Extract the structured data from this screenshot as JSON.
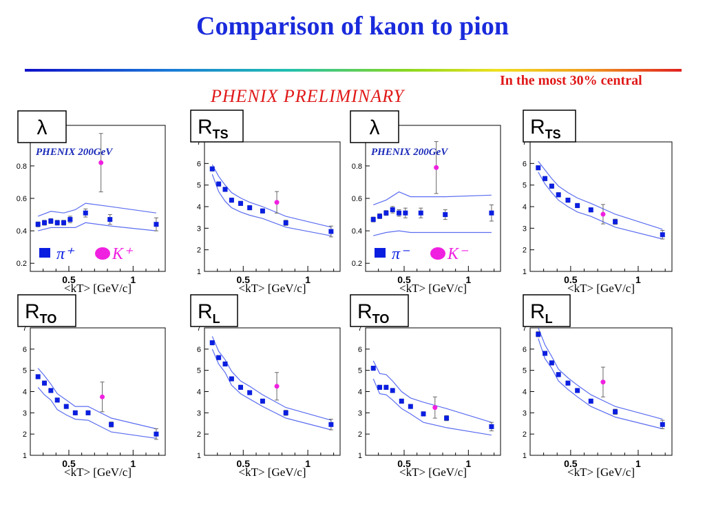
{
  "header": {
    "title": "Comparison of kaon to pion",
    "note": "In the most 30% central",
    "preliminary": "PHENIX PRELIMINARY"
  },
  "colors": {
    "title": "#1a2bdc",
    "note": "#e01818",
    "pion_marker": "#0a1ee0",
    "kaon_marker": "#f020e0",
    "band": "#5a6cf0"
  },
  "chart_data": [
    {
      "type": "scatter",
      "panel": "top-1",
      "badge": "λ",
      "experiment_label": "PHENIX 200GeV",
      "xlabel": "<kT> [GeV/c]",
      "ylabel": "",
      "xlim": [
        0.2,
        1.25
      ],
      "ylim": [
        0.15,
        1.05
      ],
      "xticks": [
        0.5,
        1
      ],
      "xtick_labels": [
        "0.5",
        "1"
      ],
      "yticks": [
        0.2,
        0.4,
        0.6,
        0.8
      ],
      "ytick_labels": [
        "0.2",
        "0.4",
        "0.6",
        "0.8"
      ],
      "legend": {
        "pion": "π⁺",
        "kaon": "K⁺"
      },
      "series": [
        {
          "name": "π⁺",
          "marker": "square",
          "x": [
            0.26,
            0.31,
            0.36,
            0.41,
            0.46,
            0.51,
            0.63,
            0.82,
            1.18
          ],
          "y": [
            0.44,
            0.45,
            0.46,
            0.45,
            0.45,
            0.47,
            0.51,
            0.47,
            0.44
          ],
          "err": [
            0.015,
            0.015,
            0.015,
            0.015,
            0.015,
            0.02,
            0.025,
            0.03,
            0.04
          ]
        },
        {
          "name": "K⁺",
          "marker": "circle",
          "x": [
            0.75
          ],
          "y": [
            0.82
          ],
          "err": [
            0.18
          ]
        }
      ],
      "band_upper": {
        "x": [
          0.26,
          0.36,
          0.46,
          0.55,
          0.63,
          0.82,
          1.18
        ],
        "y": [
          0.49,
          0.52,
          0.51,
          0.53,
          0.57,
          0.55,
          0.51
        ]
      },
      "band_lower": {
        "x": [
          0.26,
          0.36,
          0.46,
          0.55,
          0.63,
          0.82,
          1.18
        ],
        "y": [
          0.4,
          0.42,
          0.42,
          0.42,
          0.45,
          0.43,
          0.4
        ]
      }
    },
    {
      "type": "scatter",
      "panel": "top-2",
      "badge": "R",
      "badge_sub": "TS",
      "xlabel": "<kT> [GeV/c]",
      "ylabel": "",
      "xlim": [
        0.2,
        1.25
      ],
      "ylim": [
        1,
        7
      ],
      "xticks": [
        0.5,
        1
      ],
      "xtick_labels": [
        "0.5",
        "1"
      ],
      "yticks": [
        1,
        2,
        3,
        4,
        5,
        6,
        7
      ],
      "ytick_labels": [
        "1",
        "2",
        "3",
        "4",
        "5",
        "6",
        "7"
      ],
      "series": [
        {
          "name": "π⁺",
          "marker": "square",
          "x": [
            0.26,
            0.31,
            0.36,
            0.41,
            0.48,
            0.55,
            0.65,
            0.83,
            1.18
          ],
          "y": [
            5.75,
            5.05,
            4.8,
            4.3,
            4.15,
            3.95,
            3.8,
            3.25,
            2.85
          ],
          "err": [
            0.1,
            0.1,
            0.1,
            0.1,
            0.1,
            0.1,
            0.1,
            0.12,
            0.25
          ]
        },
        {
          "name": "K⁺",
          "marker": "circle",
          "x": [
            0.76
          ],
          "y": [
            4.2
          ],
          "err": [
            0.5
          ]
        }
      ],
      "band_upper": {
        "x": [
          0.26,
          0.31,
          0.36,
          0.41,
          0.48,
          0.55,
          0.65,
          0.83,
          1.18
        ],
        "y": [
          5.95,
          5.4,
          5.0,
          4.65,
          4.4,
          4.2,
          4.0,
          3.55,
          3.05
        ]
      },
      "band_lower": {
        "x": [
          0.26,
          0.31,
          0.36,
          0.41,
          0.48,
          0.55,
          0.65,
          0.83,
          1.18
        ],
        "y": [
          5.5,
          4.7,
          4.25,
          3.95,
          3.75,
          3.6,
          3.45,
          3.05,
          2.65
        ]
      }
    },
    {
      "type": "scatter",
      "panel": "top-3",
      "badge": "λ",
      "experiment_label": "PHENIX 200GeV",
      "xlabel": "<kT> [GeV/c]",
      "ylabel": "",
      "xlim": [
        0.2,
        1.25
      ],
      "ylim": [
        0.15,
        1.05
      ],
      "xticks": [
        0.5,
        1
      ],
      "xtick_labels": [
        "0.5",
        "1"
      ],
      "yticks": [
        0.2,
        0.4,
        0.6,
        0.8
      ],
      "ytick_labels": [
        "0.2",
        "0.4",
        "0.6",
        "0.8"
      ],
      "legend": {
        "pion": "π⁻",
        "kaon": "K⁻"
      },
      "series": [
        {
          "name": "π⁻",
          "marker": "square",
          "x": [
            0.26,
            0.31,
            0.36,
            0.41,
            0.46,
            0.51,
            0.63,
            0.82,
            1.18
          ],
          "y": [
            0.47,
            0.49,
            0.51,
            0.53,
            0.51,
            0.51,
            0.51,
            0.5,
            0.51
          ],
          "err": [
            0.015,
            0.015,
            0.015,
            0.02,
            0.02,
            0.03,
            0.03,
            0.03,
            0.05
          ]
        },
        {
          "name": "K⁻",
          "marker": "circle",
          "x": [
            0.75
          ],
          "y": [
            0.79
          ],
          "err": [
            0.16
          ]
        }
      ],
      "band_upper": {
        "x": [
          0.26,
          0.36,
          0.46,
          0.55,
          0.63,
          0.82,
          1.18
        ],
        "y": [
          0.56,
          0.59,
          0.64,
          0.61,
          0.61,
          0.61,
          0.62
        ]
      },
      "band_lower": {
        "x": [
          0.26,
          0.36,
          0.46,
          0.55,
          0.63,
          0.82,
          1.18
        ],
        "y": [
          0.37,
          0.39,
          0.4,
          0.39,
          0.39,
          0.39,
          0.39
        ]
      }
    },
    {
      "type": "scatter",
      "panel": "top-4",
      "badge": "R",
      "badge_sub": "TS",
      "xlabel": "<kT> [GeV/c]",
      "ylabel": "",
      "xlim": [
        0.2,
        1.25
      ],
      "ylim": [
        1,
        7
      ],
      "xticks": [
        0.5,
        1
      ],
      "xtick_labels": [
        "0.5",
        "1"
      ],
      "yticks": [
        1,
        2,
        3,
        4,
        5,
        6,
        7
      ],
      "ytick_labels": [
        "1",
        "2",
        "3",
        "4",
        "5",
        "6",
        "7"
      ],
      "series": [
        {
          "name": "π⁻",
          "marker": "square",
          "x": [
            0.26,
            0.31,
            0.36,
            0.41,
            0.48,
            0.55,
            0.65,
            0.83,
            1.18
          ],
          "y": [
            5.8,
            5.3,
            4.95,
            4.55,
            4.3,
            4.05,
            3.85,
            3.3,
            2.7
          ],
          "err": [
            0.1,
            0.1,
            0.1,
            0.1,
            0.1,
            0.1,
            0.1,
            0.12,
            0.2
          ]
        },
        {
          "name": "K⁻",
          "marker": "circle",
          "x": [
            0.74
          ],
          "y": [
            3.65
          ],
          "err": [
            0.45
          ]
        }
      ],
      "band_upper": {
        "x": [
          0.26,
          0.31,
          0.36,
          0.41,
          0.48,
          0.55,
          0.65,
          0.83,
          1.18
        ],
        "y": [
          6.1,
          5.7,
          5.3,
          4.95,
          4.65,
          4.4,
          4.15,
          3.65,
          2.95
        ]
      },
      "band_lower": {
        "x": [
          0.26,
          0.31,
          0.36,
          0.41,
          0.48,
          0.55,
          0.65,
          0.83,
          1.18
        ],
        "y": [
          5.6,
          5.05,
          4.65,
          4.3,
          4.0,
          3.75,
          3.55,
          3.05,
          2.5
        ]
      }
    },
    {
      "type": "scatter",
      "panel": "bottom-1",
      "badge": "R",
      "badge_sub": "TO",
      "xlabel": "<kT> [GeV/c]",
      "ylabel": "",
      "xlim": [
        0.2,
        1.25
      ],
      "ylim": [
        1,
        7
      ],
      "xticks": [
        0.5,
        1
      ],
      "xtick_labels": [
        "0.5",
        "1"
      ],
      "yticks": [
        1,
        2,
        3,
        4,
        5,
        6,
        7
      ],
      "ytick_labels": [
        "1",
        "2",
        "3",
        "4",
        "5",
        "6",
        "7"
      ],
      "series": [
        {
          "name": "π⁺",
          "marker": "square",
          "x": [
            0.26,
            0.31,
            0.36,
            0.41,
            0.48,
            0.55,
            0.65,
            0.83,
            1.18
          ],
          "y": [
            4.7,
            4.4,
            4.05,
            3.6,
            3.3,
            3.0,
            3.0,
            2.45,
            2.0
          ],
          "err": [
            0.1,
            0.1,
            0.1,
            0.1,
            0.1,
            0.1,
            0.1,
            0.12,
            0.25
          ]
        },
        {
          "name": "K⁺",
          "marker": "circle",
          "x": [
            0.76
          ],
          "y": [
            3.75
          ],
          "err": [
            0.7
          ]
        }
      ],
      "band_upper": {
        "x": [
          0.26,
          0.31,
          0.36,
          0.41,
          0.48,
          0.55,
          0.65,
          0.83,
          1.18
        ],
        "y": [
          5.1,
          4.75,
          4.35,
          3.9,
          3.6,
          3.3,
          3.3,
          2.75,
          2.25
        ]
      },
      "band_lower": {
        "x": [
          0.26,
          0.31,
          0.36,
          0.41,
          0.48,
          0.55,
          0.65,
          0.83,
          1.18
        ],
        "y": [
          4.2,
          3.85,
          3.6,
          3.15,
          2.9,
          2.7,
          2.65,
          2.1,
          1.8
        ]
      }
    },
    {
      "type": "scatter",
      "panel": "bottom-2",
      "badge": "R",
      "badge_sub": "L",
      "xlabel": "<kT> [GeV/c]",
      "ylabel": "",
      "xlim": [
        0.2,
        1.25
      ],
      "ylim": [
        1,
        7
      ],
      "xticks": [
        0.5,
        1
      ],
      "xtick_labels": [
        "0.5",
        "1"
      ],
      "yticks": [
        1,
        2,
        3,
        4,
        5,
        6,
        7
      ],
      "ytick_labels": [
        "1",
        "2",
        "3",
        "4",
        "5",
        "6",
        "7"
      ],
      "series": [
        {
          "name": "π⁺",
          "marker": "square",
          "x": [
            0.26,
            0.31,
            0.36,
            0.41,
            0.48,
            0.55,
            0.65,
            0.83,
            1.18
          ],
          "y": [
            6.3,
            5.6,
            5.3,
            4.6,
            4.2,
            3.95,
            3.55,
            3.0,
            2.45
          ],
          "err": [
            0.1,
            0.1,
            0.1,
            0.1,
            0.1,
            0.1,
            0.1,
            0.12,
            0.25
          ]
        },
        {
          "name": "K⁺",
          "marker": "circle",
          "x": [
            0.76
          ],
          "y": [
            4.25
          ],
          "err": [
            0.65
          ]
        }
      ],
      "band_upper": {
        "x": [
          0.26,
          0.31,
          0.36,
          0.41,
          0.48,
          0.55,
          0.65,
          0.83,
          1.18
        ],
        "y": [
          6.6,
          5.9,
          5.5,
          4.95,
          4.5,
          4.25,
          3.85,
          3.25,
          2.65
        ]
      },
      "band_lower": {
        "x": [
          0.26,
          0.31,
          0.36,
          0.41,
          0.48,
          0.55,
          0.65,
          0.83,
          1.18
        ],
        "y": [
          6.0,
          5.3,
          4.9,
          4.3,
          3.9,
          3.65,
          3.3,
          2.75,
          2.2
        ]
      }
    },
    {
      "type": "scatter",
      "panel": "bottom-3",
      "badge": "R",
      "badge_sub": "TO",
      "xlabel": "<kT> [GeV/c]",
      "ylabel": "",
      "xlim": [
        0.2,
        1.25
      ],
      "ylim": [
        1,
        7
      ],
      "xticks": [
        0.5,
        1
      ],
      "xtick_labels": [
        "0.5",
        "1"
      ],
      "yticks": [
        1,
        2,
        3,
        4,
        5,
        6,
        7
      ],
      "ytick_labels": [
        "1",
        "2",
        "3",
        "4",
        "5",
        "6",
        "7"
      ],
      "series": [
        {
          "name": "π⁻",
          "marker": "square",
          "x": [
            0.26,
            0.31,
            0.36,
            0.41,
            0.48,
            0.55,
            0.65,
            0.83,
            1.18
          ],
          "y": [
            5.1,
            4.2,
            4.2,
            4.05,
            3.55,
            3.3,
            2.95,
            2.75,
            2.35
          ],
          "err": [
            0.1,
            0.1,
            0.1,
            0.1,
            0.1,
            0.1,
            0.1,
            0.12,
            0.2
          ]
        },
        {
          "name": "K⁻",
          "marker": "circle",
          "x": [
            0.74
          ],
          "y": [
            3.25
          ],
          "err": [
            0.5
          ]
        }
      ],
      "band_upper": {
        "x": [
          0.26,
          0.31,
          0.36,
          0.41,
          0.48,
          0.55,
          0.65,
          0.83,
          1.18
        ],
        "y": [
          5.45,
          4.85,
          4.8,
          4.5,
          4.0,
          3.7,
          3.5,
          3.2,
          2.55
        ]
      },
      "band_lower": {
        "x": [
          0.26,
          0.31,
          0.36,
          0.41,
          0.48,
          0.55,
          0.65,
          0.83,
          1.18
        ],
        "y": [
          4.6,
          3.9,
          3.85,
          3.6,
          3.2,
          2.95,
          2.55,
          2.3,
          1.95
        ]
      }
    },
    {
      "type": "scatter",
      "panel": "bottom-4",
      "badge": "R",
      "badge_sub": "L",
      "xlabel": "<kT> [GeV/c]",
      "ylabel": "",
      "xlim": [
        0.2,
        1.25
      ],
      "ylim": [
        1,
        7
      ],
      "xticks": [
        0.5,
        1
      ],
      "xtick_labels": [
        "0.5",
        "1"
      ],
      "yticks": [
        1,
        2,
        3,
        4,
        5,
        6,
        7
      ],
      "ytick_labels": [
        "1",
        "2",
        "3",
        "4",
        "5",
        "6",
        "7"
      ],
      "series": [
        {
          "name": "π⁻",
          "marker": "square",
          "x": [
            0.26,
            0.31,
            0.36,
            0.41,
            0.48,
            0.55,
            0.65,
            0.83,
            1.18
          ],
          "y": [
            6.7,
            5.8,
            5.35,
            4.8,
            4.4,
            4.05,
            3.55,
            3.05,
            2.45
          ],
          "err": [
            0.12,
            0.1,
            0.1,
            0.1,
            0.1,
            0.1,
            0.1,
            0.12,
            0.2
          ]
        },
        {
          "name": "K⁻",
          "marker": "circle",
          "x": [
            0.74
          ],
          "y": [
            4.45
          ],
          "err": [
            0.7
          ]
        }
      ],
      "band_upper": {
        "x": [
          0.26,
          0.31,
          0.36,
          0.41,
          0.48,
          0.55,
          0.65,
          0.83,
          1.18
        ],
        "y": [
          7.0,
          6.2,
          5.65,
          5.05,
          4.65,
          4.3,
          3.85,
          3.3,
          2.7
        ]
      },
      "band_lower": {
        "x": [
          0.26,
          0.31,
          0.36,
          0.41,
          0.48,
          0.55,
          0.65,
          0.83,
          1.18
        ],
        "y": [
          6.5,
          5.55,
          5.1,
          4.5,
          4.1,
          3.75,
          3.3,
          2.8,
          2.25
        ]
      }
    }
  ]
}
